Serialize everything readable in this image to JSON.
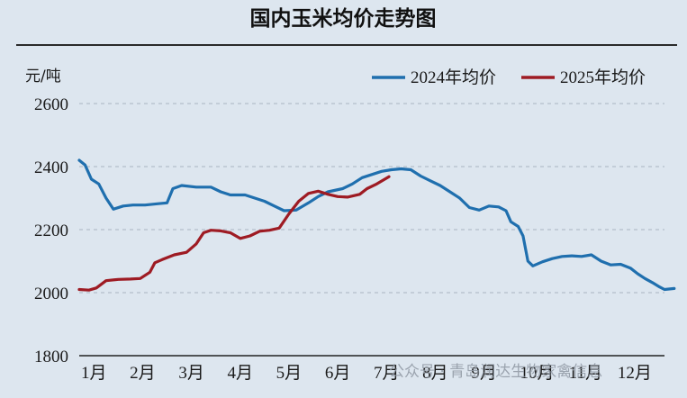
{
  "chart_data": {
    "type": "line",
    "title": "国内玉米均价走势图",
    "ylabel": "元/吨",
    "xlabel": "",
    "ylim": [
      1800,
      2600
    ],
    "yticks": [
      1800,
      2000,
      2200,
      2400,
      2600
    ],
    "x_categories": [
      "1月",
      "2月",
      "3月",
      "4月",
      "5月",
      "6月",
      "7月",
      "8月",
      "9月",
      "10月",
      "11月",
      "12月"
    ],
    "grid": "horizontal dashed",
    "legend_position": "top-right",
    "series": [
      {
        "name": "2024年均价",
        "color": "#1f6fae",
        "points": [
          [
            0.0,
            2420
          ],
          [
            0.12,
            2405
          ],
          [
            0.25,
            2360
          ],
          [
            0.4,
            2345
          ],
          [
            0.55,
            2300
          ],
          [
            0.7,
            2265
          ],
          [
            0.9,
            2275
          ],
          [
            1.1,
            2278
          ],
          [
            1.35,
            2278
          ],
          [
            1.6,
            2282
          ],
          [
            1.8,
            2285
          ],
          [
            1.92,
            2330
          ],
          [
            2.1,
            2340
          ],
          [
            2.4,
            2335
          ],
          [
            2.7,
            2335
          ],
          [
            2.9,
            2320
          ],
          [
            3.1,
            2310
          ],
          [
            3.4,
            2310
          ],
          [
            3.6,
            2300
          ],
          [
            3.8,
            2290
          ],
          [
            4.0,
            2275
          ],
          [
            4.2,
            2260
          ],
          [
            4.45,
            2262
          ],
          [
            4.7,
            2285
          ],
          [
            4.9,
            2305
          ],
          [
            5.1,
            2320
          ],
          [
            5.4,
            2330
          ],
          [
            5.6,
            2345
          ],
          [
            5.8,
            2365
          ],
          [
            6.0,
            2375
          ],
          [
            6.2,
            2385
          ],
          [
            6.4,
            2390
          ],
          [
            6.6,
            2393
          ],
          [
            6.8,
            2390
          ],
          [
            7.0,
            2370
          ],
          [
            7.2,
            2355
          ],
          [
            7.4,
            2340
          ],
          [
            7.6,
            2320
          ],
          [
            7.8,
            2300
          ],
          [
            8.0,
            2270
          ],
          [
            8.2,
            2262
          ],
          [
            8.4,
            2275
          ],
          [
            8.6,
            2272
          ],
          [
            8.75,
            2260
          ],
          [
            8.85,
            2225
          ],
          [
            9.0,
            2210
          ],
          [
            9.1,
            2180
          ],
          [
            9.2,
            2100
          ],
          [
            9.3,
            2085
          ],
          [
            9.5,
            2098
          ],
          [
            9.7,
            2108
          ],
          [
            9.9,
            2115
          ],
          [
            10.1,
            2117
          ],
          [
            10.3,
            2115
          ],
          [
            10.5,
            2120
          ],
          [
            10.7,
            2100
          ],
          [
            10.9,
            2088
          ],
          [
            11.1,
            2090
          ],
          [
            11.3,
            2078
          ],
          [
            11.45,
            2060
          ],
          [
            11.6,
            2045
          ],
          [
            11.75,
            2032
          ],
          [
            11.9,
            2018
          ],
          [
            12.0,
            2010
          ],
          [
            12.2,
            2013
          ]
        ]
      },
      {
        "name": "2025年均价",
        "color": "#9e1b23",
        "points": [
          [
            0.0,
            2010
          ],
          [
            0.2,
            2008
          ],
          [
            0.35,
            2015
          ],
          [
            0.55,
            2038
          ],
          [
            0.8,
            2042
          ],
          [
            1.05,
            2043
          ],
          [
            1.25,
            2045
          ],
          [
            1.45,
            2065
          ],
          [
            1.55,
            2095
          ],
          [
            1.7,
            2105
          ],
          [
            1.95,
            2120
          ],
          [
            2.2,
            2128
          ],
          [
            2.4,
            2155
          ],
          [
            2.55,
            2190
          ],
          [
            2.7,
            2198
          ],
          [
            2.9,
            2196
          ],
          [
            3.1,
            2190
          ],
          [
            3.3,
            2172
          ],
          [
            3.5,
            2180
          ],
          [
            3.7,
            2195
          ],
          [
            3.9,
            2198
          ],
          [
            4.1,
            2205
          ],
          [
            4.3,
            2250
          ],
          [
            4.5,
            2290
          ],
          [
            4.7,
            2315
          ],
          [
            4.9,
            2322
          ],
          [
            5.1,
            2312
          ],
          [
            5.3,
            2305
          ],
          [
            5.5,
            2303
          ],
          [
            5.75,
            2312
          ],
          [
            5.9,
            2330
          ],
          [
            6.1,
            2345
          ],
          [
            6.35,
            2368
          ]
        ]
      }
    ]
  },
  "legend": {
    "items": [
      "2024年均价",
      "2025年均价"
    ]
  },
  "watermark": {
    "text": "公众号 · 青岛润达生物家禽信息"
  }
}
